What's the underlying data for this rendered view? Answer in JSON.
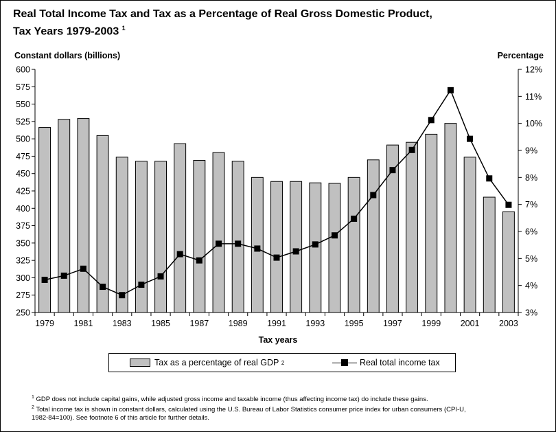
{
  "title": {
    "line1": "Real Total Income Tax and Tax as a Percentage of Real Gross Domestic Product,",
    "line2": "Tax Years 1979-2003",
    "note_marker": "1"
  },
  "chart_data": {
    "type": "bar+line",
    "title": "Real Total Income Tax and Tax as a Percentage of Real Gross Domestic Product, Tax Years 1979-2003",
    "xlabel": "Tax years",
    "ylabel_left": "Constant dollars (billions)",
    "ylabel_right": "Percentage",
    "ylim_left": [
      250,
      600
    ],
    "ylim_right": [
      3,
      12
    ],
    "yticks_left": [
      "600",
      "575",
      "550",
      "525",
      "500",
      "475",
      "450",
      "425",
      "400",
      "375",
      "350",
      "325",
      "300",
      "275",
      "250"
    ],
    "yticks_right": [
      "12%",
      "11%",
      "10%",
      "9%",
      "8%",
      "7%",
      "6%",
      "5%",
      "4%",
      "3%"
    ],
    "xtick_labels": [
      "1979",
      "1981",
      "1983",
      "1985",
      "1987",
      "1989",
      "1991",
      "1993",
      "1995",
      "1997",
      "1999",
      "2001",
      "2003"
    ],
    "years": [
      1979,
      1980,
      1981,
      1982,
      1983,
      1984,
      1985,
      1986,
      1987,
      1988,
      1989,
      1990,
      1991,
      1992,
      1993,
      1994,
      1995,
      1996,
      1997,
      1998,
      1999,
      2000,
      2001,
      2002,
      2003
    ],
    "series": [
      {
        "name": "Tax as a percentage of real GDP",
        "kind": "bar",
        "axis": "right",
        "unit": "percent",
        "values": [
          9.85,
          10.15,
          10.18,
          9.55,
          8.75,
          8.6,
          8.6,
          9.25,
          8.63,
          8.92,
          8.6,
          8.0,
          7.85,
          7.85,
          7.8,
          7.78,
          8.0,
          8.65,
          9.2,
          9.3,
          9.6,
          10.0,
          8.75,
          7.27,
          6.73
        ]
      },
      {
        "name": "Real total income tax",
        "kind": "line",
        "axis": "left",
        "unit": "constant dollars (billions)",
        "values": [
          297,
          303,
          313,
          287,
          275,
          290,
          302,
          334,
          325,
          349,
          349,
          342,
          329,
          338,
          348,
          361,
          385,
          419,
          455,
          484,
          527,
          570,
          500,
          443,
          405
        ]
      }
    ],
    "legend_position": "bottom"
  },
  "legend": {
    "bar_label": "Tax as a percentage of real GDP",
    "bar_note": "2",
    "line_label": "Real total income tax"
  },
  "footnotes": {
    "note1_marker": "1",
    "note1": "GDP does not include capital gains, while adjusted gross income and taxable income (thus affecting income tax) do include these gains.",
    "note2_marker": "2",
    "note2_line1": "Total income tax is shown in constant dollars, calculated using the U.S. Bureau of Labor Statistics consumer price index for urban consumers (CPI-U,",
    "note2_line2": "1982-84=100).  See footnote 6 of this article for further details."
  },
  "colors": {
    "bar_fill": "#c0c0c0",
    "line": "#000000",
    "axis": "#000000"
  }
}
